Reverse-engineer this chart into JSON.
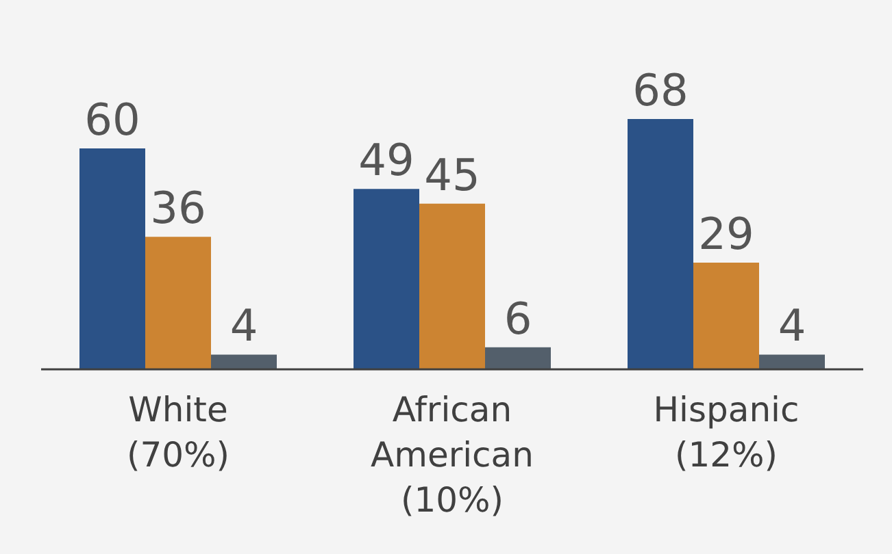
{
  "chart_data": {
    "type": "bar",
    "categories": [
      "White\n(70%)",
      "African\nAmerican\n(10%)",
      "Hispanic\n(12%)"
    ],
    "series": [
      {
        "color": "#2b5287",
        "values": [
          60,
          49,
          68
        ]
      },
      {
        "color": "#cc8432",
        "values": [
          36,
          45,
          29
        ]
      },
      {
        "color": "#535f6b",
        "values": [
          4,
          6,
          4
        ]
      }
    ],
    "data_labels": true
  }
}
